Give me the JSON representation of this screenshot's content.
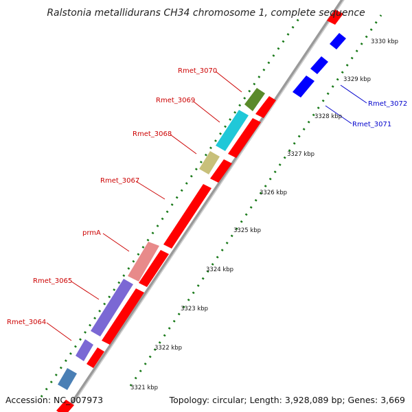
{
  "title": "Ralstonia metallidurans CH34 chromosome 1, complete sequence",
  "accession": "Accession: NC_007973",
  "topology": "Topology: circular; Length: 3,928,089 bp; Genes: 3,669",
  "colors": {
    "forward": "#ff0000",
    "reverse": "#0000ff",
    "backbone": "#999999",
    "tick": "#1a7a1a",
    "label_forward": "#cc0000",
    "label_reverse": "#0000cc"
  },
  "scale_labels": [
    "3321 kbp",
    "3322 kbp",
    "3323 kbp",
    "3324 kbp",
    "3325 kbp",
    "3326 kbp",
    "3327 kbp",
    "3328 kbp",
    "3329 kbp",
    "3330 kbp"
  ],
  "gene_labels": [
    {
      "name": "Rmet_3064",
      "strand": "forward"
    },
    {
      "name": "Rmet_3065",
      "strand": "forward"
    },
    {
      "name": "prmA",
      "strand": "forward"
    },
    {
      "name": "Rmet_3067",
      "strand": "forward"
    },
    {
      "name": "Rmet_3068",
      "strand": "forward"
    },
    {
      "name": "Rmet_3069",
      "strand": "forward"
    },
    {
      "name": "Rmet_3070",
      "strand": "forward"
    },
    {
      "name": "Rmet_3071",
      "strand": "reverse"
    },
    {
      "name": "Rmet_3072",
      "strand": "reverse"
    }
  ],
  "feature_colors": [
    "#4a7fb5",
    "#7b68d4",
    "#7b68d4",
    "#e88a8a",
    "#c8c07a",
    "#20c8d8",
    "#5a8a2a"
  ]
}
